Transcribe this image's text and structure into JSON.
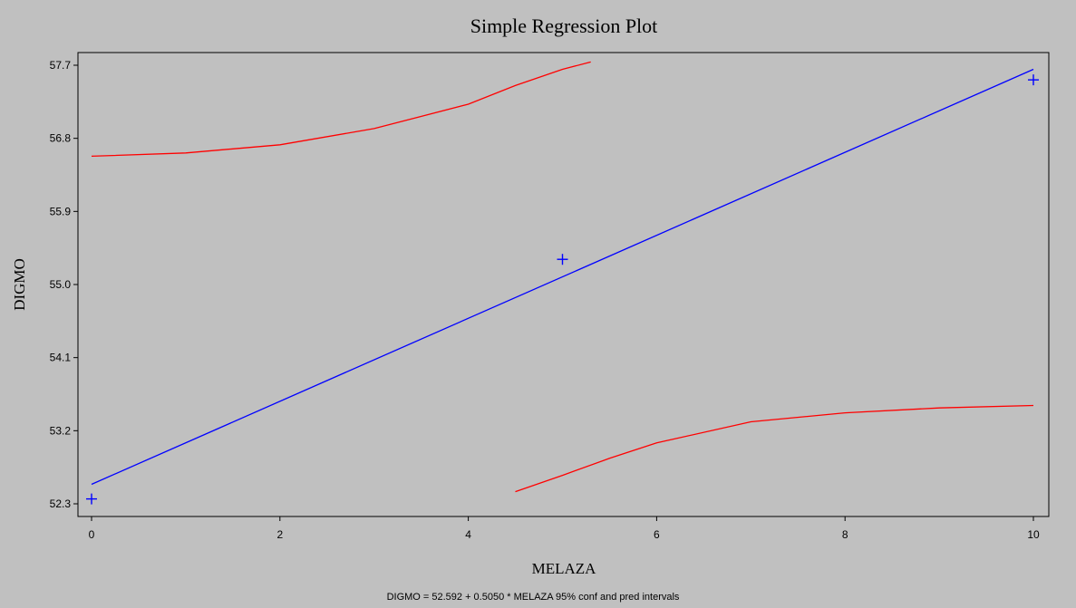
{
  "chart_data": {
    "type": "scatter",
    "title": "Simple Regression Plot",
    "xlabel": "MELAZA",
    "ylabel": "DIGMO",
    "footnote": "DIGMO = 52.592 + 0.5050 * MELAZA   95% conf and pred intervals",
    "xlim": [
      0,
      10
    ],
    "ylim": [
      52.0,
      57.7
    ],
    "x_ticks": [
      0,
      2,
      4,
      6,
      8,
      10
    ],
    "x_tick_labels": [
      "0",
      "2",
      "4",
      "6",
      "8",
      "10"
    ],
    "y_ticks": [
      52.3,
      53.2,
      54.1,
      55.0,
      55.9,
      56.8,
      57.7
    ],
    "y_tick_labels": [
      "52.3",
      "53.2",
      "54.1",
      "55.0",
      "55.9",
      "56.8",
      "57.7"
    ],
    "grid": false,
    "colors": {
      "background": "#c0c0c0",
      "points": "#0000ff",
      "fit_line": "#0000ff",
      "interval": "#ff0000",
      "frame": "#000000"
    },
    "series": [
      {
        "type": "scatter",
        "marker": "plus",
        "x": [
          0,
          5,
          10
        ],
        "y": [
          52.36,
          55.31,
          57.52
        ]
      },
      {
        "type": "line",
        "role": "regression",
        "x": [
          0,
          10
        ],
        "y": [
          52.54,
          57.65
        ]
      },
      {
        "type": "line",
        "role": "upper-interval",
        "x": [
          0,
          1,
          2,
          3,
          4,
          4.5,
          5.0,
          5.3
        ],
        "y": [
          56.58,
          56.62,
          56.72,
          56.92,
          57.22,
          57.45,
          57.65,
          57.74
        ]
      },
      {
        "type": "line",
        "role": "lower-interval",
        "x": [
          4.5,
          5.0,
          5.5,
          6.0,
          7.0,
          8.0,
          9.0,
          10.0
        ],
        "y": [
          52.45,
          52.65,
          52.86,
          53.05,
          53.31,
          53.42,
          53.48,
          53.51
        ]
      }
    ]
  }
}
